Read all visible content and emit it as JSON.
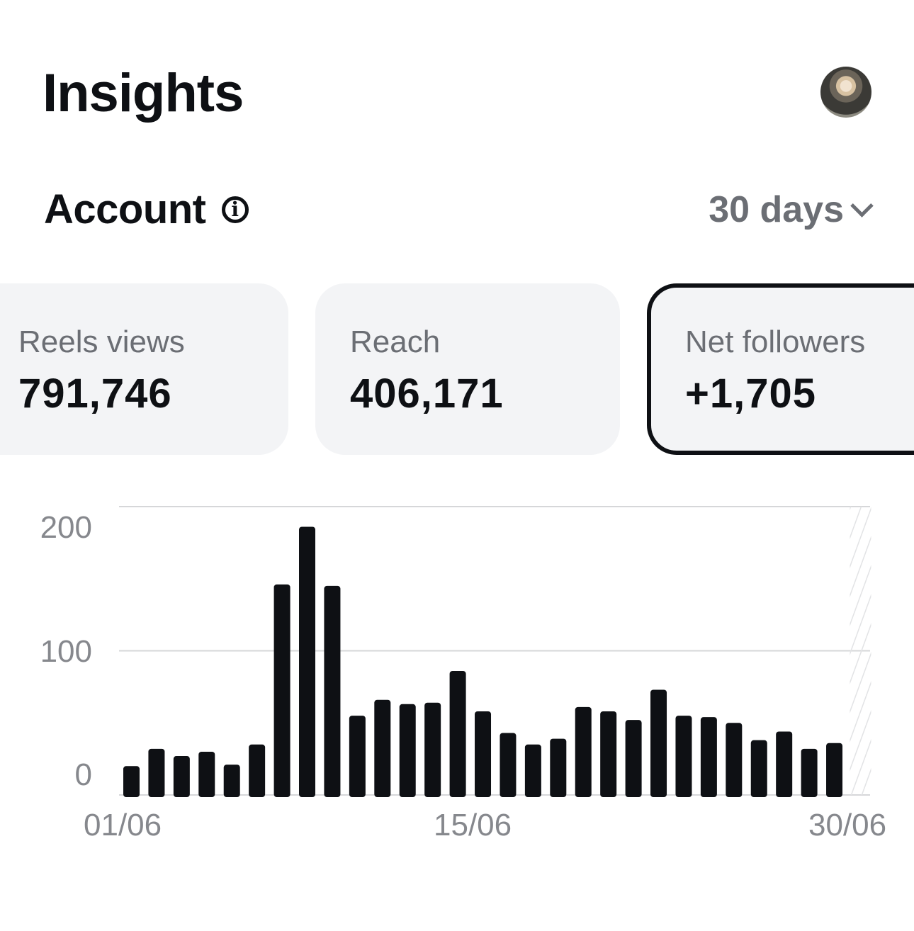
{
  "header": {
    "title": "Insights",
    "avatar_icon": "profile-photo"
  },
  "section": {
    "title": "Account",
    "info_icon": "info-icon",
    "range": "30 days",
    "range_icon": "chevron-down-icon"
  },
  "cards": [
    {
      "label": "Reels views",
      "value": "791,746",
      "selected": false
    },
    {
      "label": "Reach",
      "value": "406,171",
      "selected": false
    },
    {
      "label": "Net followers",
      "value": "+1,705",
      "selected": true
    }
  ],
  "chart_data": {
    "type": "bar",
    "ylim": [
      0,
      200
    ],
    "y_ticks": [
      "0",
      "100",
      "200"
    ],
    "x_tick_labels": [
      "01/06",
      "15/06",
      "30/06"
    ],
    "grid": true,
    "bar_color": "#0e1014",
    "categories": [
      "01/06",
      "02/06",
      "03/06",
      "04/06",
      "05/06",
      "06/06",
      "07/06",
      "08/06",
      "09/06",
      "10/06",
      "11/06",
      "12/06",
      "13/06",
      "14/06",
      "15/06",
      "16/06",
      "17/06",
      "18/06",
      "19/06",
      "20/06",
      "21/06",
      "22/06",
      "23/06",
      "24/06",
      "25/06",
      "26/06",
      "27/06",
      "28/06",
      "29/06",
      "30/06"
    ],
    "values": [
      20,
      32,
      27,
      30,
      21,
      35,
      146,
      186,
      145,
      55,
      66,
      63,
      64,
      86,
      58,
      43,
      35,
      39,
      61,
      58,
      52,
      73,
      55,
      54,
      50,
      38,
      44,
      32,
      36,
      null
    ]
  }
}
